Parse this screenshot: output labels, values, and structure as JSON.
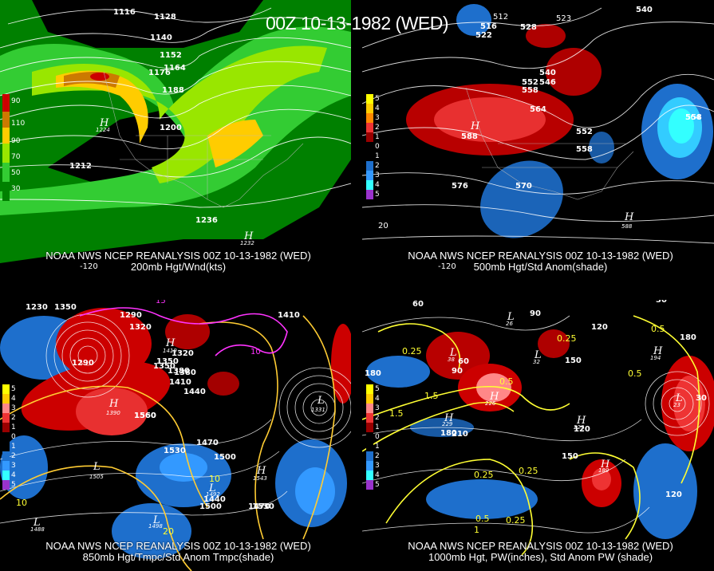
{
  "title": "00Z 10-13-1982 (WED)",
  "panels": {
    "p200": {
      "caption1": "NOAA NWS NCEP REANALYSIS 00Z 10-13-1982 (WED)",
      "caption2": "200mb Hgt/Wnd(kts)",
      "colorbar": [
        "90",
        "110",
        "90",
        "70",
        "50",
        "30"
      ],
      "contours": [
        "1116",
        "1128",
        "1140",
        "1152",
        "1164",
        "1176",
        "1188",
        "1200",
        "1212",
        "1236"
      ],
      "highs": [
        {
          "letter": "H",
          "value": "1224"
        },
        {
          "letter": "H",
          "value": "1232"
        }
      ],
      "lon": [
        "-120"
      ]
    },
    "p500": {
      "caption1": "NOAA NWS NCEP REANALYSIS 00Z 10-13-1982 (WED)",
      "caption2": "500mb Hgt/Std Anom(shade)",
      "colorbar": [
        "5",
        "4",
        "3",
        "2",
        "1",
        "0",
        "1",
        "2",
        "3",
        "4",
        "5"
      ],
      "contours": [
        "540",
        "512",
        "516",
        "522",
        "528",
        "523",
        "540",
        "546",
        "552",
        "558",
        "564",
        "552",
        "558",
        "570",
        "576",
        "564",
        "558"
      ],
      "highs": [
        {
          "letter": "H",
          "value": "588"
        },
        {
          "letter": "H",
          "value": "588"
        }
      ],
      "lon": [
        "-120"
      ],
      "lat": [
        "20"
      ]
    },
    "p850": {
      "caption1": "NOAA NWS NCEP REANALYSIS 00Z 10-13-1982 (WED)",
      "caption2": "850mb Hgt/Tmpc/Std Anom Tmpc(shade)",
      "colorbar": [
        "5",
        "4",
        "3",
        "2",
        "1",
        "0",
        "1",
        "2",
        "3",
        "4",
        "5"
      ],
      "contours": [
        "1230",
        "1350",
        "1290",
        "1320",
        "1350",
        "1380",
        "1410",
        "1440",
        "1470",
        "1500",
        "1530",
        "1560",
        "1290",
        "1320",
        "1350",
        "1380",
        "1410",
        "1440",
        "1470",
        "1500",
        "1530",
        "1560"
      ],
      "temps": [
        "15",
        "10",
        "20",
        "10",
        "10"
      ],
      "lows": [
        {
          "letter": "L",
          "value": "1505"
        },
        {
          "letter": "L",
          "value": "1488"
        },
        {
          "letter": "L",
          "value": "1331"
        },
        {
          "letter": "L",
          "value": "1492"
        },
        {
          "letter": "L",
          "value": "1498"
        }
      ],
      "highs": [
        {
          "letter": "H",
          "value": "1390"
        },
        {
          "letter": "H",
          "value": "1419"
        },
        {
          "letter": "H",
          "value": "1543"
        }
      ]
    },
    "p1000": {
      "caption1": "NOAA NWS NCEP REANALYSIS 00Z 10-13-1982 (WED)",
      "caption2": "1000mb Hgt, PW(inches), Std Anom PW (shade)",
      "colorbar": [
        "5",
        "4",
        "3",
        "2",
        "1",
        "0",
        "1",
        "2",
        "3",
        "4",
        "5"
      ],
      "contours": [
        "60",
        "30",
        "90",
        "120",
        "150",
        "180",
        "210",
        "180",
        "120",
        "150",
        "90",
        "60",
        "30",
        "180",
        "120"
      ],
      "pw": [
        "0.25",
        "0.5",
        "1",
        "1.5",
        "0.25",
        "0.25",
        "0.5",
        "0.25",
        "0.5",
        "0.25",
        "0.5"
      ],
      "lows": [
        {
          "letter": "L",
          "value": "38"
        },
        {
          "letter": "L",
          "value": "26"
        },
        {
          "letter": "L",
          "value": "32"
        },
        {
          "letter": "L",
          "value": "23"
        }
      ],
      "highs": [
        {
          "letter": "H",
          "value": "226"
        },
        {
          "letter": "H",
          "value": "229"
        },
        {
          "letter": "H",
          "value": "194"
        },
        {
          "letter": "H",
          "value": "189"
        },
        {
          "letter": "H",
          "value": "229"
        }
      ]
    }
  },
  "colors": {
    "jet_dark": "#008000",
    "jet_mid": "#33cc33",
    "jet_light": "#99e600",
    "jet_yellow": "#ffcc00",
    "jet_orange": "#cc7a00",
    "jet_red": "#cc0000",
    "anom_pos": "#cc0000",
    "anom_neg": "#1e6fcc",
    "contour": "#ffffff",
    "temp_line": "#ffcc33",
    "pw_line": "#ffff33",
    "magenta": "#ff33ff"
  }
}
